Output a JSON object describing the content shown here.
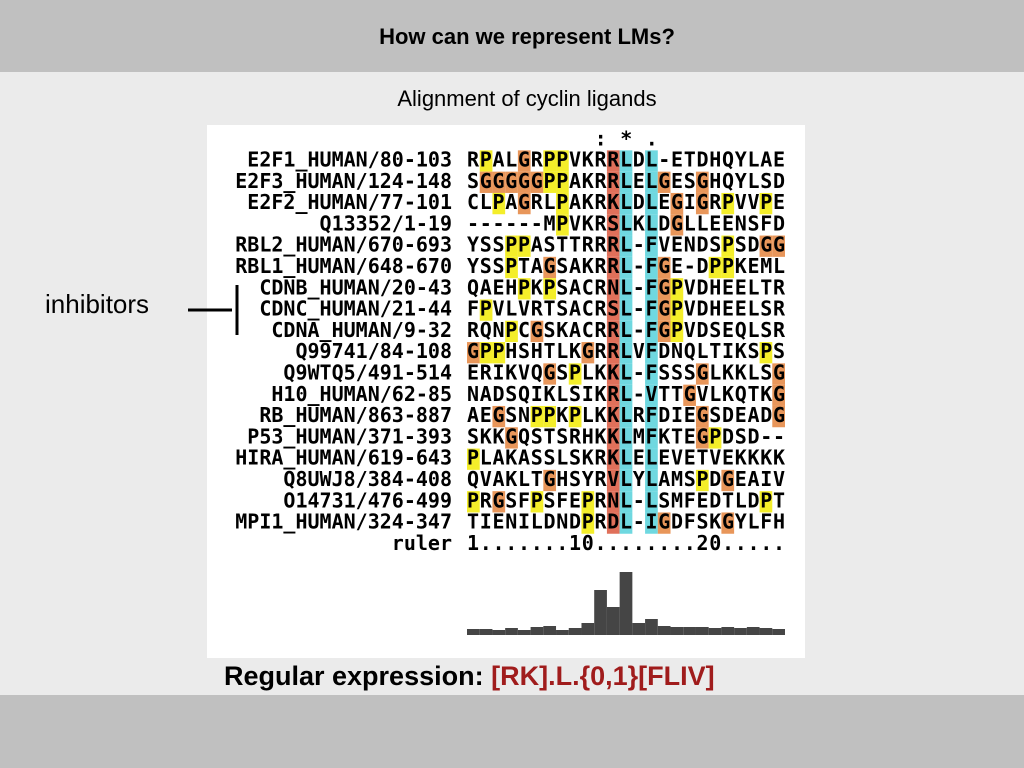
{
  "header": {
    "title": "How can we represent LMs?"
  },
  "subtitle": "Alignment of cyclin ligands",
  "group_label": "inhibitors",
  "alignment": {
    "consensus": "          : * .",
    "rows": [
      {
        "name": "E2F1_HUMAN/80-103",
        "sequence": "RPALGRPPVKRRLDL-ETDHQYLAE"
      },
      {
        "name": "E2F3_HUMAN/124-148",
        "sequence": "SGGGGGPPAKRRLELGESGHQYLSD"
      },
      {
        "name": "E2F2_HUMAN/77-101",
        "sequence": "CLPAGRLPAKRKLDLEGIGRPVVPE"
      },
      {
        "name": "Q13352/1-19",
        "sequence": "------MPVKRSLKLDGLLEENSFD"
      },
      {
        "name": "RBL2_HUMAN/670-693",
        "sequence": "YSSPPASTTRRRL-FVENDSPSDGG"
      },
      {
        "name": "RBL1_HUMAN/648-670",
        "sequence": "YSSPTAGSAKRRL-FGE-DPPKEML"
      },
      {
        "name": "CDNB_HUMAN/20-43",
        "sequence": "QAEHPKPSACRNL-FGPVDHEELTR"
      },
      {
        "name": "CDNC_HUMAN/21-44",
        "sequence": "FPVLVRTSACRSL-FGPVDHEELSR"
      },
      {
        "name": "CDNA_HUMAN/9-32",
        "sequence": "RQNPCGSKACRRL-FGPVDSEQLSR"
      },
      {
        "name": "Q99741/84-108",
        "sequence": "GPPHSHTLKGRRLVFDNQLTIKSPS"
      },
      {
        "name": "Q9WTQ5/491-514",
        "sequence": "ERIKVQGSPLKKL-FSSSGLKKLSG"
      },
      {
        "name": "H10_HUMAN/62-85",
        "sequence": "NADSQIKLSIKRL-VTTGVLKQTKG"
      },
      {
        "name": "RB_HUMAN/863-887",
        "sequence": "AEGSNPPKPLKKLRFDIEGSDEADG"
      },
      {
        "name": "P53_HUMAN/371-393",
        "sequence": "SKKGQSTSRHKKLMFKTEGPDSD--"
      },
      {
        "name": "HIRA_HUMAN/619-643",
        "sequence": "PLAKASSLSKRKLELEVETVEKKKK"
      },
      {
        "name": "Q8UWJ8/384-408",
        "sequence": "QVAKLTGHSYRVLYLAMSPDGEAIV"
      },
      {
        "name": "O14731/476-499",
        "sequence": "PRGSFPSFEPRNL-LSMFEDTLDPT"
      },
      {
        "name": "MPI1_HUMAN/324-347",
        "sequence": "TIENILDNDPRDL-IGDFSKGYLFH"
      },
      {
        "name": "ruler",
        "sequence": "1.......10........20....."
      }
    ],
    "residue_colors": {
      "P": "#f4ee2a",
      "G": "#e8965a"
    },
    "column_colors": {
      "11": "#e0705a",
      "12": "#6fd8e0",
      "14": "#6fd8e0"
    },
    "conservation": [
      6,
      6,
      5,
      7,
      5,
      8,
      9,
      5,
      7,
      12,
      45,
      28,
      63,
      12,
      16,
      9,
      8,
      8,
      8,
      7,
      8,
      7,
      8,
      7,
      6
    ],
    "bar_color": "#454545"
  },
  "regex": {
    "label": "Regular expression:",
    "pattern": "[RK].L.{0,1}[FLIV]"
  }
}
